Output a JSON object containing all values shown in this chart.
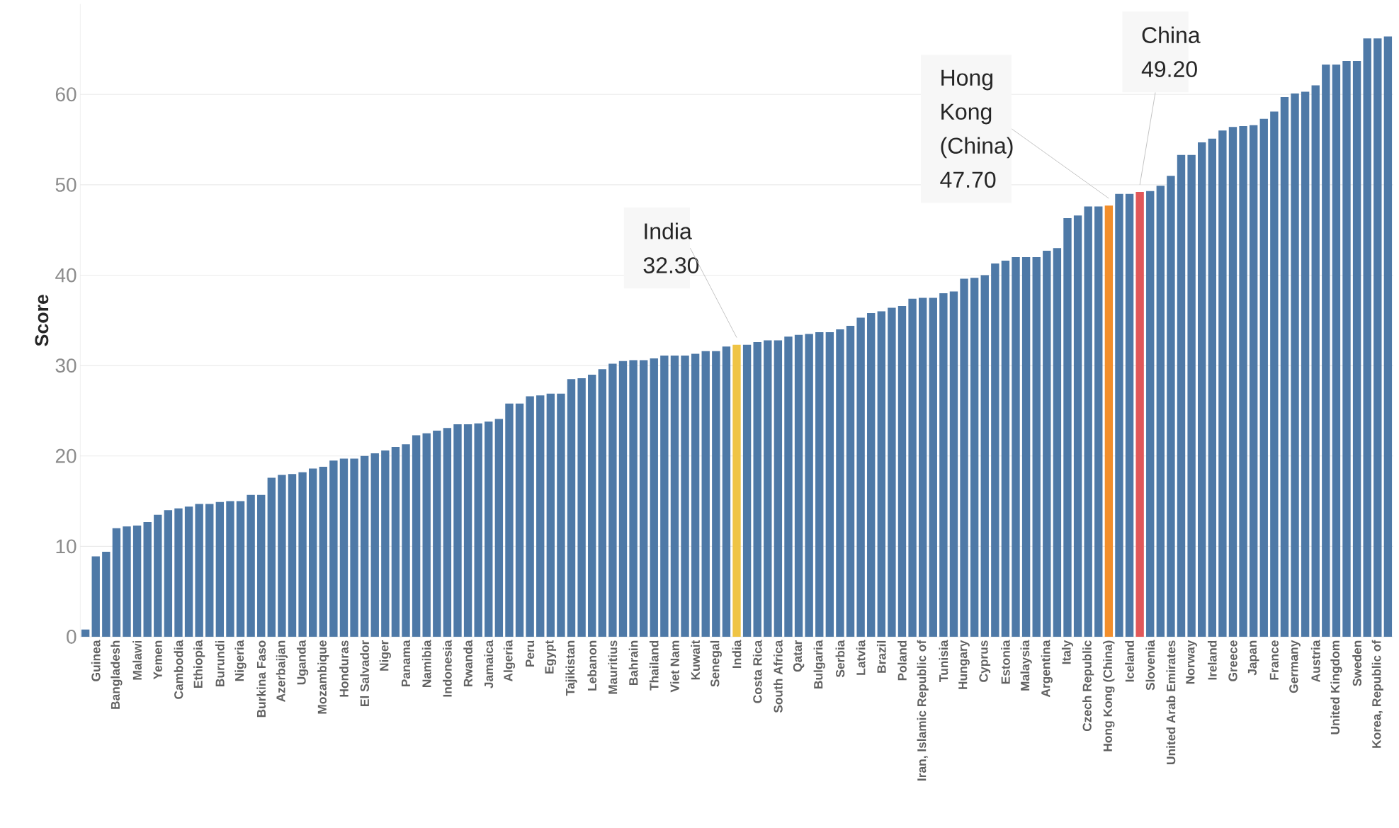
{
  "chart_data": {
    "type": "bar",
    "ylabel": "Score",
    "categories": [
      null,
      "Guinea",
      null,
      "Bangladesh",
      null,
      "Malawi",
      null,
      "Yemen",
      null,
      "Cambodia",
      null,
      "Ethiopia",
      null,
      "Burundi",
      null,
      "Nigeria",
      null,
      "Burkina Faso",
      null,
      "Azerbaijan",
      null,
      "Uganda",
      null,
      "Mozambique",
      null,
      "Honduras",
      null,
      "El Salvador",
      null,
      "Niger",
      null,
      "Panama",
      null,
      "Namibia",
      null,
      "Indonesia",
      null,
      "Rwanda",
      null,
      "Jamaica",
      null,
      "Algeria",
      null,
      "Peru",
      null,
      "Egypt",
      null,
      "Tajikistan",
      null,
      "Lebanon",
      null,
      "Mauritius",
      null,
      "Bahrain",
      null,
      "Thailand",
      null,
      "Viet Nam",
      null,
      "Kuwait",
      null,
      "Senegal",
      null,
      "India",
      null,
      "Costa Rica",
      null,
      "South Africa",
      null,
      "Qatar",
      null,
      "Bulgaria",
      null,
      "Serbia",
      null,
      "Latvia",
      null,
      "Brazil",
      null,
      "Poland",
      null,
      "Iran, Islamic Republic of",
      null,
      "Tunisia",
      null,
      "Hungary",
      null,
      "Cyprus",
      null,
      "Estonia",
      null,
      "Malaysia",
      null,
      "Argentina",
      null,
      "Italy",
      null,
      "Czech Republic",
      null,
      "Hong Kong (China)",
      null,
      "Iceland",
      null,
      "Slovenia",
      null,
      "United Arab Emirates",
      null,
      "Norway",
      null,
      "Ireland",
      null,
      "Greece",
      null,
      "Japan",
      null,
      "France",
      null,
      "Germany",
      null,
      "Austria",
      null,
      "United Kingdom",
      null,
      "Sweden",
      null,
      "Korea, Republic of",
      null
    ],
    "values": [
      0.8,
      8.9,
      9.4,
      12.0,
      12.2,
      12.3,
      12.7,
      13.5,
      14.0,
      14.2,
      14.4,
      14.7,
      14.7,
      14.9,
      15.0,
      15.0,
      15.7,
      15.7,
      17.6,
      17.9,
      18.0,
      18.2,
      18.6,
      18.8,
      19.5,
      19.7,
      19.7,
      20.0,
      20.3,
      20.6,
      21.0,
      21.3,
      22.3,
      22.5,
      22.8,
      23.1,
      23.5,
      23.5,
      23.6,
      23.8,
      24.1,
      25.8,
      25.8,
      26.6,
      26.7,
      26.9,
      26.9,
      28.5,
      28.6,
      29.0,
      29.6,
      30.2,
      30.5,
      30.6,
      30.6,
      30.8,
      31.1,
      31.1,
      31.1,
      31.3,
      31.6,
      31.6,
      32.1,
      32.3,
      32.3,
      32.6,
      32.8,
      32.8,
      33.2,
      33.4,
      33.5,
      33.7,
      33.7,
      34.0,
      34.4,
      35.3,
      35.8,
      36.0,
      36.4,
      36.6,
      37.4,
      37.5,
      37.5,
      38.0,
      38.2,
      39.6,
      39.7,
      40.0,
      41.3,
      41.6,
      42.0,
      42.0,
      42.0,
      42.7,
      43.0,
      46.3,
      46.6,
      47.6,
      47.6,
      47.7,
      49.0,
      49.0,
      49.2,
      49.3,
      49.9,
      51.0,
      53.3,
      53.3,
      54.7,
      55.1,
      56.0,
      56.4,
      56.5,
      56.6,
      57.3,
      58.1,
      59.7,
      60.1,
      60.3,
      61.0,
      63.3,
      63.3,
      63.7,
      63.7,
      66.2,
      66.2,
      66.4
    ],
    "colors": [
      "#4e79a7",
      "#4e79a7",
      "#4e79a7",
      "#4e79a7",
      "#4e79a7",
      "#4e79a7",
      "#4e79a7",
      "#4e79a7",
      "#4e79a7",
      "#4e79a7",
      "#4e79a7",
      "#4e79a7",
      "#4e79a7",
      "#4e79a7",
      "#4e79a7",
      "#4e79a7",
      "#4e79a7",
      "#4e79a7",
      "#4e79a7",
      "#4e79a7",
      "#4e79a7",
      "#4e79a7",
      "#4e79a7",
      "#4e79a7",
      "#4e79a7",
      "#4e79a7",
      "#4e79a7",
      "#4e79a7",
      "#4e79a7",
      "#4e79a7",
      "#4e79a7",
      "#4e79a7",
      "#4e79a7",
      "#4e79a7",
      "#4e79a7",
      "#4e79a7",
      "#4e79a7",
      "#4e79a7",
      "#4e79a7",
      "#4e79a7",
      "#4e79a7",
      "#4e79a7",
      "#4e79a7",
      "#4e79a7",
      "#4e79a7",
      "#4e79a7",
      "#4e79a7",
      "#4e79a7",
      "#4e79a7",
      "#4e79a7",
      "#4e79a7",
      "#4e79a7",
      "#4e79a7",
      "#4e79a7",
      "#4e79a7",
      "#4e79a7",
      "#4e79a7",
      "#4e79a7",
      "#4e79a7",
      "#4e79a7",
      "#4e79a7",
      "#4e79a7",
      "#4e79a7",
      "#efc445",
      "#4e79a7",
      "#4e79a7",
      "#4e79a7",
      "#4e79a7",
      "#4e79a7",
      "#4e79a7",
      "#4e79a7",
      "#4e79a7",
      "#4e79a7",
      "#4e79a7",
      "#4e79a7",
      "#4e79a7",
      "#4e79a7",
      "#4e79a7",
      "#4e79a7",
      "#4e79a7",
      "#4e79a7",
      "#4e79a7",
      "#4e79a7",
      "#4e79a7",
      "#4e79a7",
      "#4e79a7",
      "#4e79a7",
      "#4e79a7",
      "#4e79a7",
      "#4e79a7",
      "#4e79a7",
      "#4e79a7",
      "#4e79a7",
      "#4e79a7",
      "#4e79a7",
      "#4e79a7",
      "#4e79a7",
      "#4e79a7",
      "#4e79a7",
      "#f28e2b",
      "#4e79a7",
      "#4e79a7",
      "#e15759",
      "#4e79a7",
      "#4e79a7",
      "#4e79a7",
      "#4e79a7",
      "#4e79a7",
      "#4e79a7",
      "#4e79a7",
      "#4e79a7",
      "#4e79a7",
      "#4e79a7",
      "#4e79a7",
      "#4e79a7",
      "#4e79a7",
      "#4e79a7",
      "#4e79a7",
      "#4e79a7",
      "#4e79a7",
      "#4e79a7",
      "#4e79a7",
      "#4e79a7",
      "#4e79a7",
      "#4e79a7",
      "#4e79a7",
      "#4e79a7"
    ],
    "ylim": [
      0,
      70
    ],
    "yticks": [
      0,
      10,
      20,
      30,
      40,
      50,
      60
    ],
    "grid": "y",
    "annotations": [
      "India 32.30",
      "Hong Kong (China) 47.70",
      "China 49.20"
    ]
  }
}
